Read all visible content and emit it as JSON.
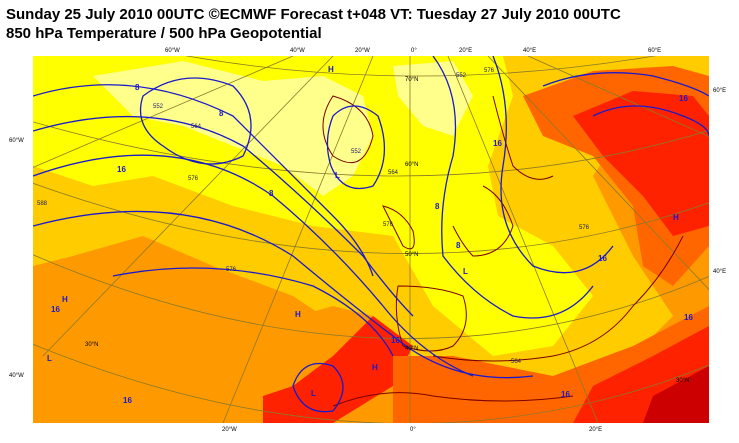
{
  "header": {
    "line1": "Sunday 25 July 2010 00UTC ©ECMWF Forecast t+048 VT: Tuesday 27 July 2010 00UTC",
    "line2": "850 hPa Temperature / 500 hPa Geopotential"
  },
  "colors": {
    "yellow_light": "#ffff8c",
    "yellow": "#ffff00",
    "gold": "#ffcc00",
    "orange": "#ff9900",
    "orange_dark": "#ff6600",
    "red": "#ff2200",
    "red_dark": "#cc0000",
    "contour": "#1a1acc",
    "graticule": "#8a7a2a",
    "coast": "#7a0000"
  },
  "graticule_labels": {
    "top": [
      "60°W",
      "40°W",
      "20°W",
      "0°",
      "20°E",
      "40°E",
      "60°E"
    ],
    "bottom": [
      "20°W",
      "0°",
      "20°E"
    ],
    "left": [
      "60°W",
      "40°W"
    ],
    "right": [
      "60°E",
      "40°E"
    ],
    "inner": [
      "70°N",
      "60°N",
      "50°N",
      "40°N",
      "30°N",
      "30°N"
    ]
  },
  "contour_labels": [
    "552",
    "564",
    "576",
    "588",
    "552",
    "564",
    "576",
    "576",
    "552",
    "576",
    "576",
    "564"
  ],
  "temp_labels": [
    "8",
    "8",
    "8",
    "16",
    "16",
    "16",
    "16",
    "8",
    "8",
    "16",
    "16",
    "16",
    "16",
    "16"
  ],
  "pressure_centers": [
    "H",
    "L",
    "H",
    "L",
    "H",
    "H",
    "L",
    "L",
    "H"
  ]
}
